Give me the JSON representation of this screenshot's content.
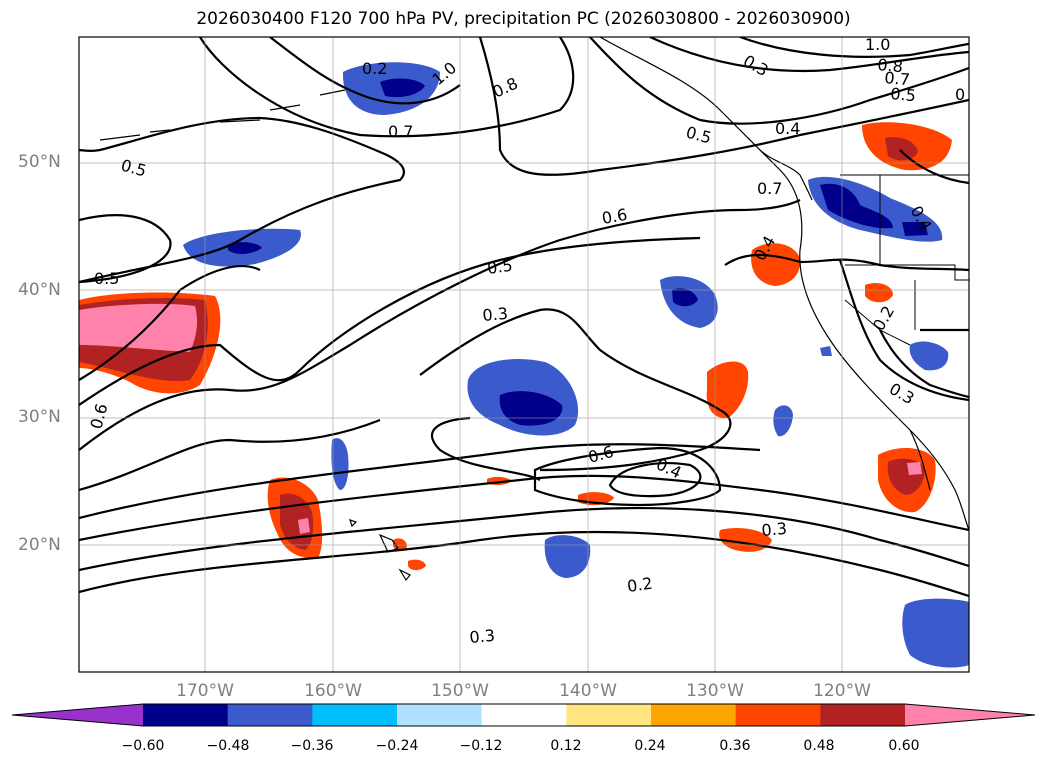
{
  "title": "2026030400 F120 700 hPa PV, precipitation PC (2026030800 - 2026030900)",
  "lat_labels": [
    "50°N",
    "40°N",
    "30°N",
    "20°N"
  ],
  "lon_labels": [
    "170°W",
    "160°W",
    "150°W",
    "140°W",
    "130°W",
    "120°W"
  ],
  "contour_labels": [
    "0.2",
    "1.0",
    "0.8",
    "0.7",
    "0.5",
    "0.6",
    "0.5",
    "0.3",
    "0.6",
    "0.5",
    "0.6",
    "0.4",
    "0.3",
    "0.2",
    "0.3",
    "0.5",
    "0.4",
    "0.7",
    "0.4",
    "1.0",
    "0.8",
    "0.7",
    "0.5",
    "0",
    "0.3",
    "0.4",
    "0.2",
    "0.3"
  ],
  "colorbar": {
    "ticks": [
      "−0.60",
      "−0.48",
      "−0.36",
      "−0.24",
      "−0.12",
      "0.12",
      "0.24",
      "0.36",
      "0.48",
      "0.60"
    ],
    "colors": [
      "#9932cc",
      "#00008b",
      "#3b5bcc",
      "#00bfff",
      "#b0e2ff",
      "#ffffff",
      "#ffe680",
      "#ffa500",
      "#ff4500",
      "#b22222",
      "#ff82ab"
    ]
  }
}
